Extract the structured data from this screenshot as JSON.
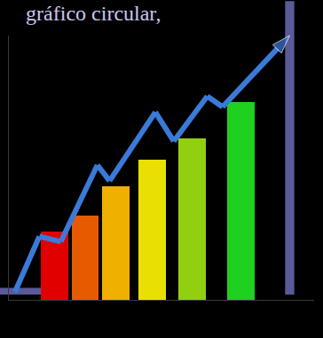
{
  "chart_data": {
    "type": "bar",
    "title": "gráfico circular,",
    "xlim": [
      0,
      100
    ],
    "ylim": [
      0,
      100
    ],
    "grid": false,
    "tick_labels": false,
    "series": [
      {
        "type": "bar",
        "x": [
          15,
          25,
          35,
          47,
          60,
          76
        ],
        "values": [
          26,
          32,
          43,
          53,
          61,
          75
        ],
        "colors": [
          "#e00000",
          "#e85a00",
          "#f0b000",
          "#e8e000",
          "#90d010",
          "#20d020"
        ]
      },
      {
        "type": "line",
        "x": [
          2,
          10,
          17,
          29,
          33,
          48,
          54,
          65,
          70,
          92
        ],
        "values": [
          3,
          24,
          22,
          51,
          45,
          71,
          60,
          77,
          73,
          100
        ],
        "color": "#3a7ad8",
        "marker": "arrow"
      }
    ]
  }
}
